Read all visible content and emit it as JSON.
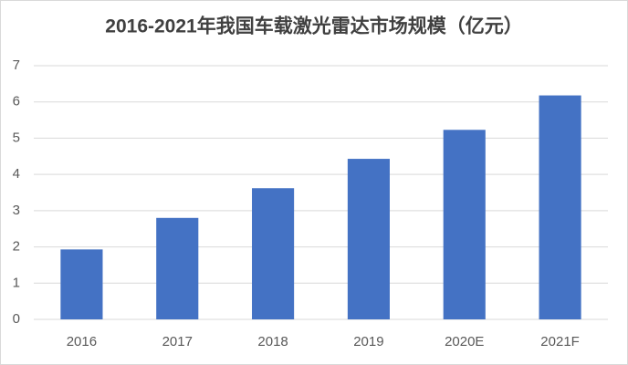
{
  "chart_data": {
    "type": "bar",
    "title": "2016-2021年我国车载激光雷达市场规模（亿元）",
    "categories": [
      "2016",
      "2017",
      "2018",
      "2019",
      "2020E",
      "2021F"
    ],
    "values": [
      1.93,
      2.8,
      3.62,
      4.43,
      5.23,
      6.18
    ],
    "color": "#4472c4",
    "ylim": [
      0,
      7
    ],
    "yticks": [
      0,
      1,
      2,
      3,
      4,
      5,
      6,
      7
    ],
    "grid": true
  }
}
